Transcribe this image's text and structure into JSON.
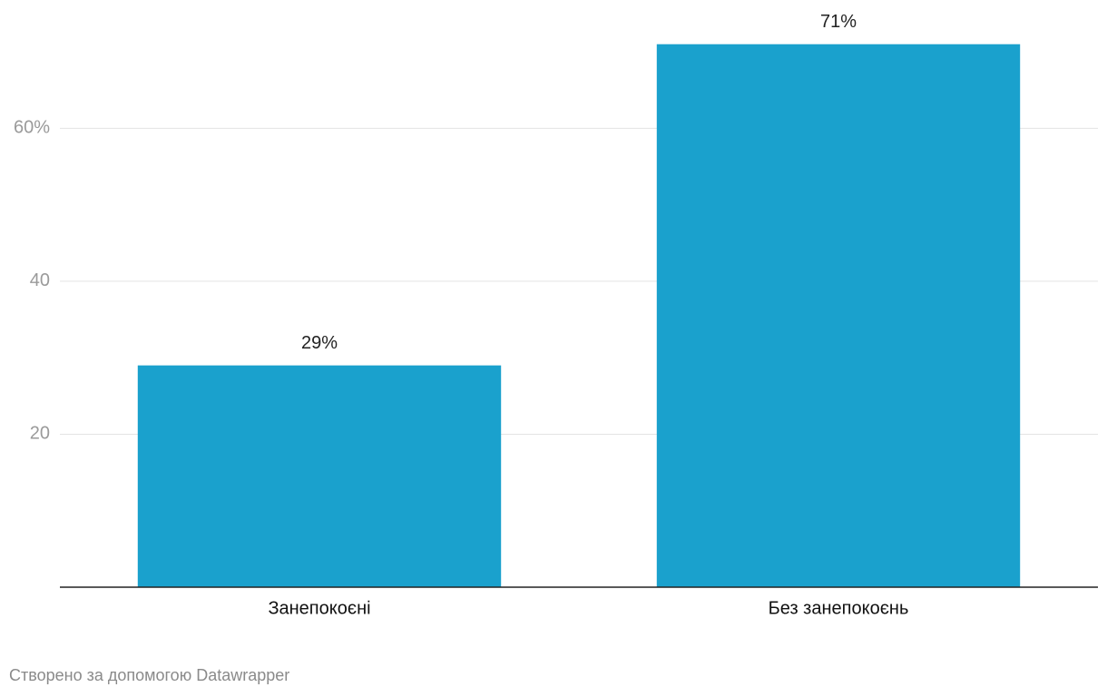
{
  "chart_data": {
    "type": "bar",
    "categories": [
      "Занепокоєні",
      "Без занепокоєнь"
    ],
    "values": [
      29,
      71
    ],
    "value_labels": [
      "29%",
      "71%"
    ],
    "color": "#1aa1cd",
    "ylim": [
      0,
      75
    ],
    "yticks": [
      20,
      40,
      {
        "value": 60,
        "label": "60%"
      }
    ],
    "grid": true,
    "credit": "Створено за допомогою Datawrapper"
  }
}
